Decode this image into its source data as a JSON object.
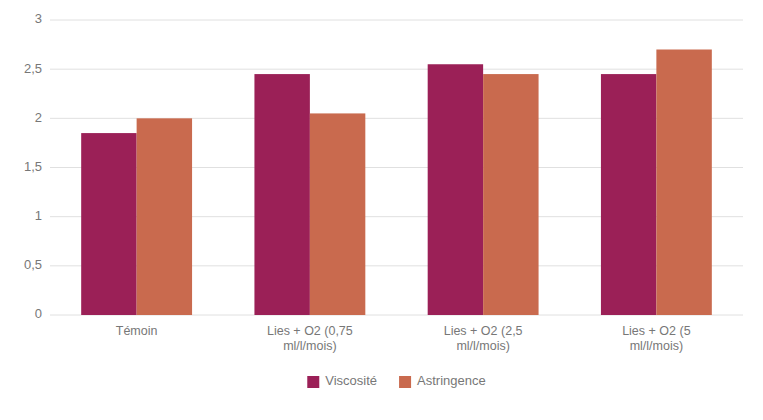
{
  "chart_data": {
    "type": "bar",
    "categories": [
      "Témoin",
      "Lies + O2 (0,75\nml/l/mois)",
      "Lies + O2 (2,5\nml/l/mois)",
      "Lies + O2 (5\nml/l/mois)"
    ],
    "series": [
      {
        "name": "Viscosité",
        "color": "#9B2057",
        "values": [
          1.85,
          2.45,
          2.55,
          2.45
        ]
      },
      {
        "name": "Astringence",
        "color": "#C96A4E",
        "values": [
          2.0,
          2.05,
          2.45,
          2.7
        ]
      }
    ],
    "ylim": [
      0,
      3.0
    ],
    "yticks": [
      0,
      {
        "value": 0.5,
        "label": "0,5"
      },
      1,
      {
        "value": 1.5,
        "label": "1,5"
      },
      2,
      {
        "value": 2.5,
        "label": "2,5"
      },
      3
    ],
    "grid": true,
    "legend": "bottom"
  }
}
